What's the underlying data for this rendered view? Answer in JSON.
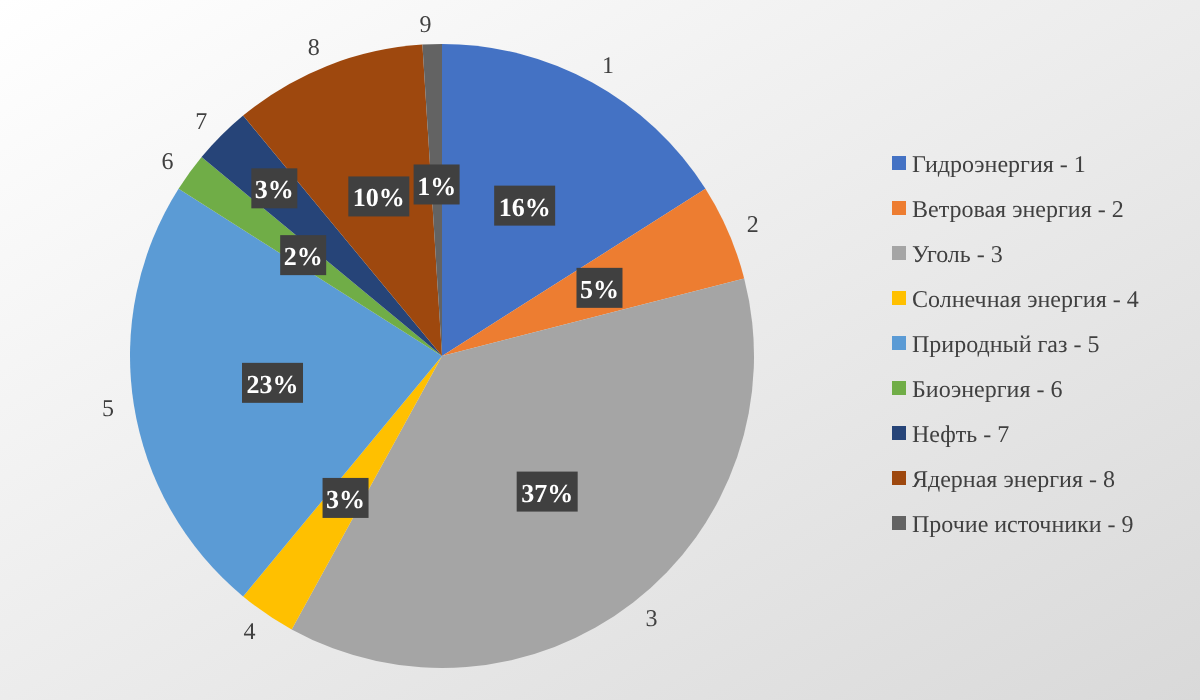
{
  "chart_data": {
    "type": "pie",
    "categories": [
      "Гидроэнергия - 1",
      "Ветровая энергия - 2",
      "Уголь - 3",
      "Солнечная энергия - 4",
      "Природный газ - 5",
      "Биоэнергия - 6",
      "Нефть - 7",
      "Ядерная энергия - 8",
      "Прочие источники - 9"
    ],
    "values": [
      16,
      5,
      37,
      3,
      23,
      2,
      3,
      10,
      1
    ],
    "colors": [
      "#4472c4",
      "#ed7d31",
      "#a5a5a5",
      "#ffc000",
      "#5b9bd5",
      "#70ad47",
      "#264478",
      "#9e480e",
      "#636363"
    ],
    "value_labels": [
      "16%",
      "5%",
      "37%",
      "3%",
      "23%",
      "2%",
      "3%",
      "10%",
      "1%"
    ],
    "annotations": [
      "1",
      "2",
      "3",
      "4",
      "5",
      "6",
      "7",
      "8",
      "9"
    ],
    "legend": "right"
  }
}
